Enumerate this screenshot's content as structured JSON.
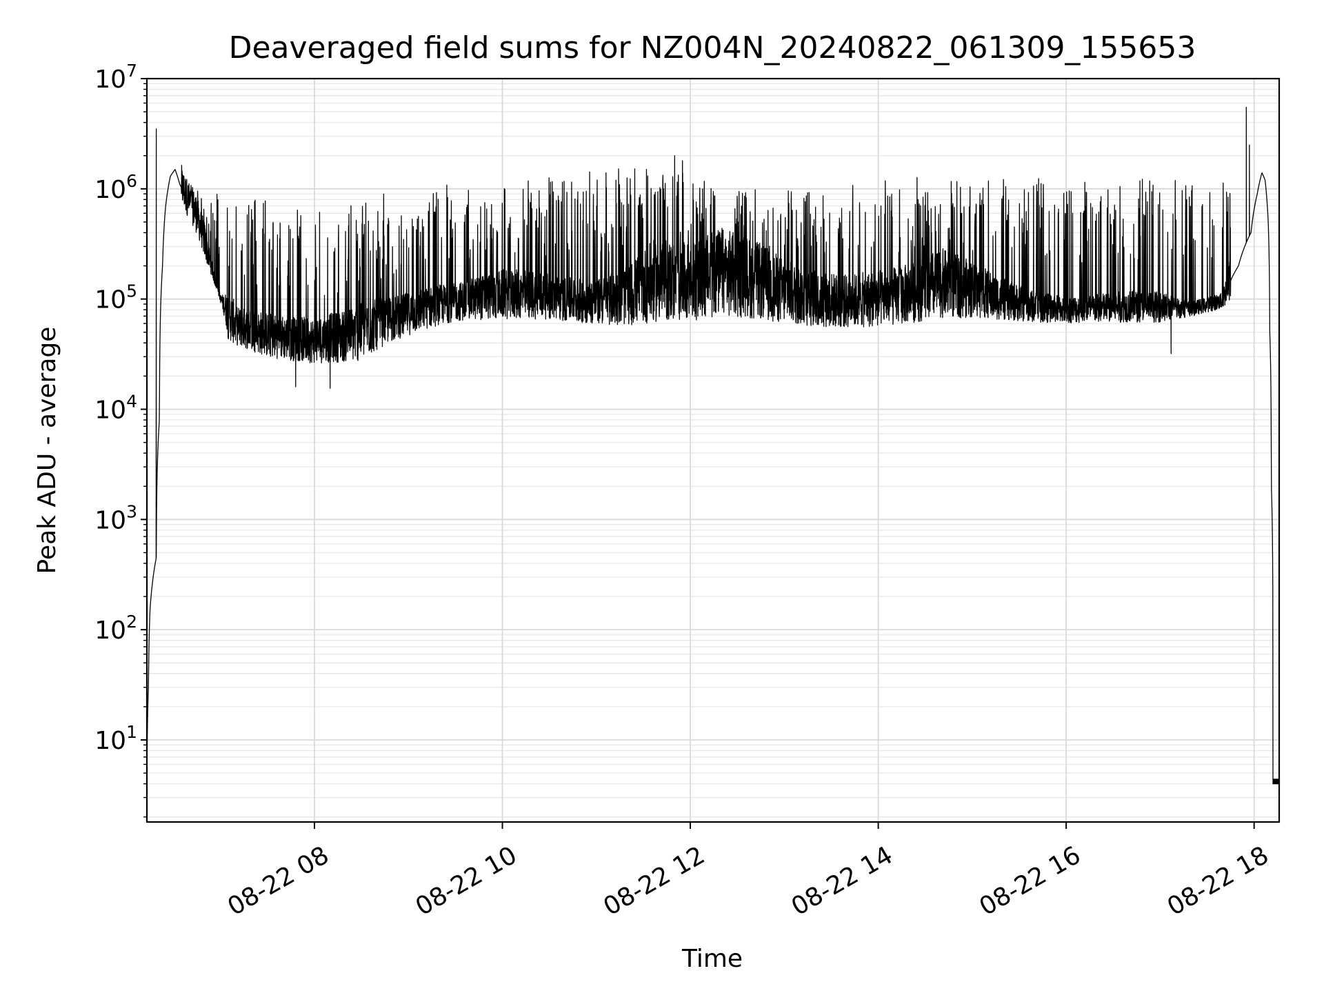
{
  "chart_data": {
    "type": "line",
    "title": "Deaveraged field sums for NZ004N_20240822_061309_155653",
    "xlabel": "Time",
    "ylabel": "Peak ADU - average",
    "yscale": "log",
    "ylim": [
      1.8,
      10000000
    ],
    "xlim": [
      "2024-08-22 06:13",
      "2024-08-22 18:16"
    ],
    "grid": true,
    "x_tick_labels": [
      "08-22 08",
      "08-22 10",
      "08-22 12",
      "08-22 14",
      "08-22 16",
      "08-22 18"
    ],
    "x_tick_values": [
      "2024-08-22 08:00",
      "2024-08-22 10:00",
      "2024-08-22 12:00",
      "2024-08-22 14:00",
      "2024-08-22 16:00",
      "2024-08-22 18:00"
    ],
    "y_tick_exponents": [
      "1",
      "2",
      "3",
      "4",
      "5",
      "6",
      "7"
    ],
    "y_tick_values": [
      10,
      100,
      1000,
      10000,
      100000,
      1000000,
      10000000
    ],
    "series": [
      {
        "color": "#000000",
        "x": [
          "06:13",
          "06:14",
          "06:15",
          "06:17",
          "06:19",
          "06:21",
          "06:23",
          "06:25",
          "06:28",
          "06:31",
          "06:34",
          "06:37",
          "06:40",
          "06:44",
          "06:48",
          "06:52",
          "06:56",
          "07:00",
          "07:05",
          "07:10",
          "07:20",
          "07:30",
          "07:45",
          "08:00",
          "08:15",
          "08:30",
          "08:45",
          "09:00",
          "09:20",
          "09:40",
          "10:00",
          "10:20",
          "10:40",
          "11:00",
          "11:20",
          "11:40",
          "12:00",
          "12:20",
          "12:40",
          "13:00",
          "13:20",
          "13:40",
          "14:00",
          "14:20",
          "14:40",
          "15:00",
          "15:20",
          "15:40",
          "16:00",
          "16:20",
          "16:40",
          "17:00",
          "17:20",
          "17:40",
          "17:50",
          "17:58",
          "18:02",
          "18:05",
          "18:07",
          "18:09",
          "18:10",
          "18:11",
          "18:12",
          "18:13",
          "18:14",
          "18:16"
        ],
        "y": [
          4,
          30,
          150,
          300,
          450,
          8000,
          200000,
          700000,
          1300000,
          1500000,
          1100000,
          900000,
          750000,
          600000,
          400000,
          250000,
          150000,
          100000,
          70000,
          55000,
          50000,
          45000,
          42000,
          40000,
          43000,
          47000,
          60000,
          70000,
          85000,
          95000,
          105000,
          105000,
          95000,
          90000,
          100000,
          140000,
          130000,
          160000,
          140000,
          110000,
          95000,
          90000,
          95000,
          105000,
          130000,
          115000,
          95000,
          82000,
          78000,
          80000,
          83000,
          82000,
          80000,
          95000,
          200000,
          400000,
          900000,
          1400000,
          1200000,
          500000,
          50000,
          2000,
          100,
          4,
          4,
          4
        ],
        "noise_band": {
          "x": [
            "06:35",
            "06:50",
            "07:05",
            "07:30",
            "08:00",
            "08:30",
            "08:50",
            "09:30",
            "10:30",
            "11:30",
            "12:30",
            "13:30",
            "14:00",
            "14:30",
            "15:00",
            "16:00",
            "17:00",
            "17:45"
          ],
          "low": [
            600000,
            200000,
            35000,
            25000,
            22000,
            22000,
            35000,
            55000,
            55000,
            45000,
            50000,
            45000,
            45000,
            50000,
            55000,
            55000,
            55000,
            80000
          ],
          "high": [
            1300000,
            1100000,
            900000,
            800000,
            600000,
            800000,
            1000000,
            1200000,
            1300000,
            1600000,
            1100000,
            1000000,
            1200000,
            1300000,
            1300000,
            1250000,
            1250000,
            1300000
          ]
        },
        "spikes": [
          {
            "x": "06:19",
            "y": 3500000
          },
          {
            "x": "11:50",
            "y": 2000000
          },
          {
            "x": "11:55",
            "y": 1800000
          },
          {
            "x": "11:32",
            "y": 1500000
          },
          {
            "x": "17:55",
            "y": 5500000
          },
          {
            "x": "17:57",
            "y": 2500000
          },
          {
            "x": "07:48",
            "y": 16000
          },
          {
            "x": "08:10",
            "y": 15500
          },
          {
            "x": "17:07",
            "y": 32000
          }
        ]
      }
    ]
  }
}
